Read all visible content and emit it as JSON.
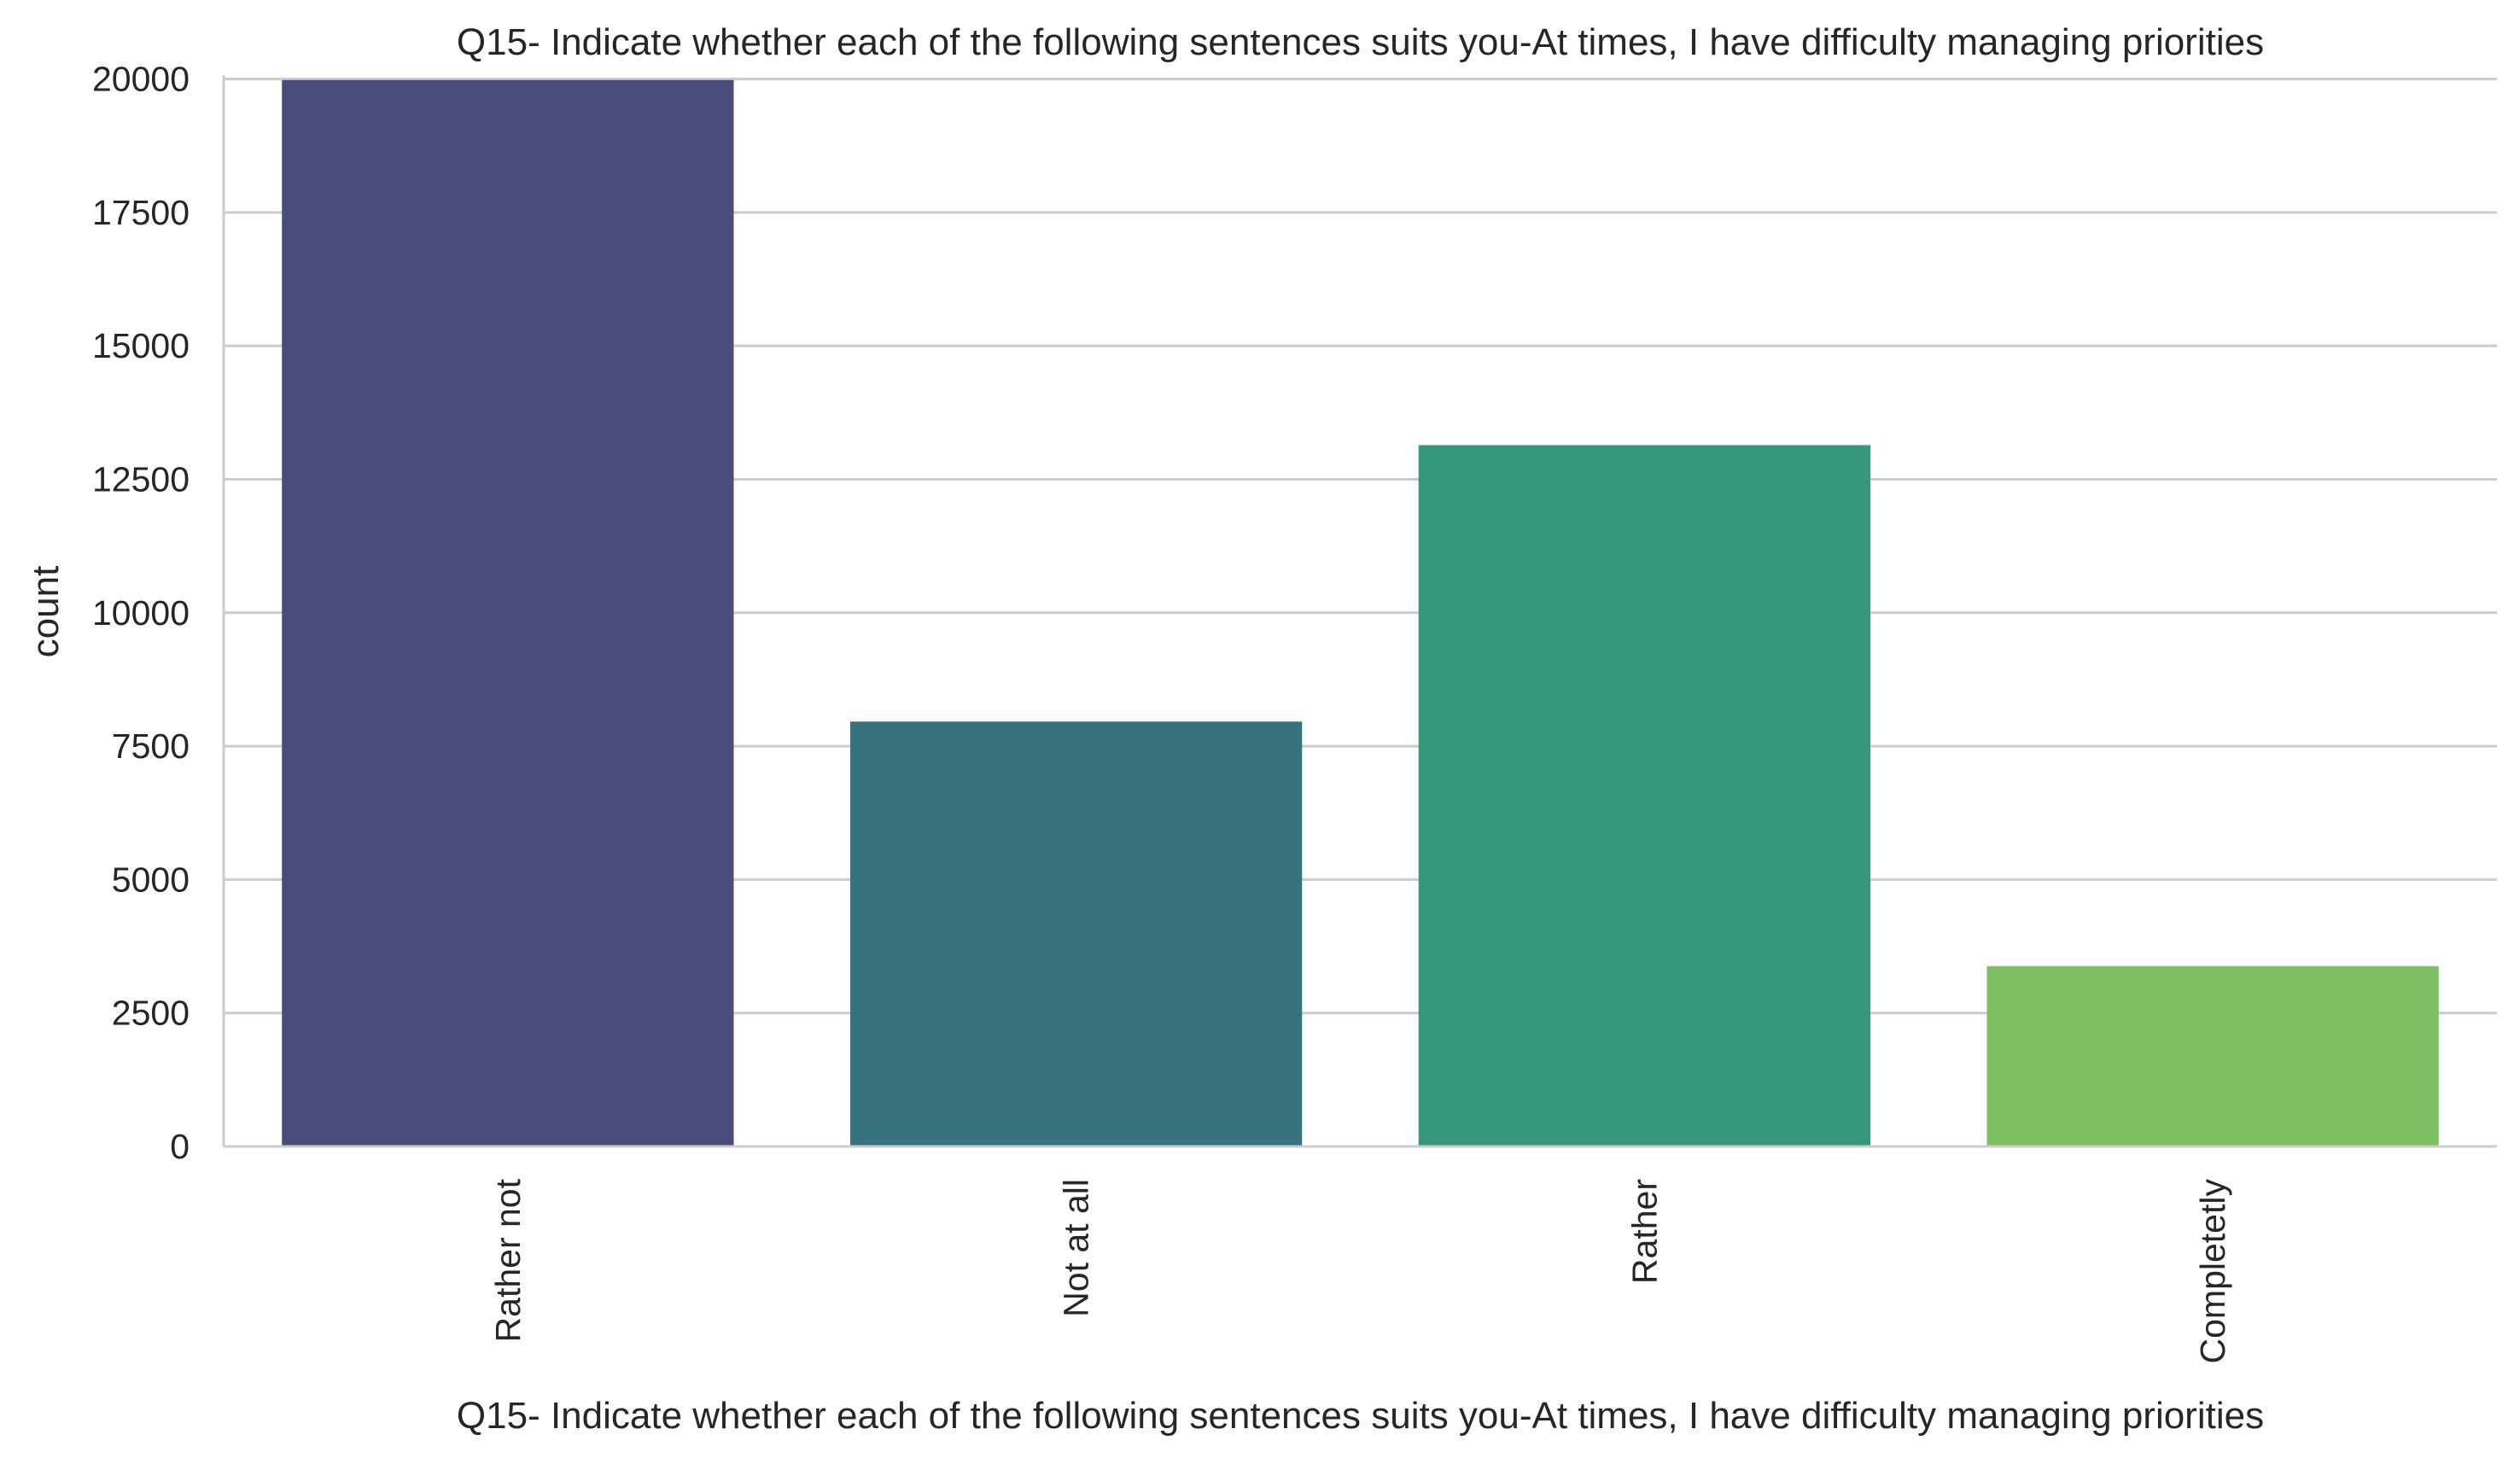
{
  "chart_data": {
    "type": "bar",
    "title": "Q15- Indicate whether each of the following sentences suits you-At times, I have difficulty managing priorities",
    "xlabel": "Q15- Indicate whether each of the following sentences suits you-At times, I have difficulty managing priorities",
    "ylabel": "count",
    "categories": [
      "Rather not",
      "Not at all",
      "Rather",
      "Completetly"
    ],
    "values": [
      19980,
      7960,
      13140,
      3380
    ],
    "ylim": [
      0,
      21000
    ],
    "yticks": [
      0,
      2500,
      5000,
      7500,
      10000,
      12500,
      15000,
      17500,
      20000
    ],
    "colors": [
      "#4a4d7b",
      "#37727f",
      "#35977b",
      "#7fc062"
    ],
    "grid": "horizontal",
    "legend": "none"
  }
}
